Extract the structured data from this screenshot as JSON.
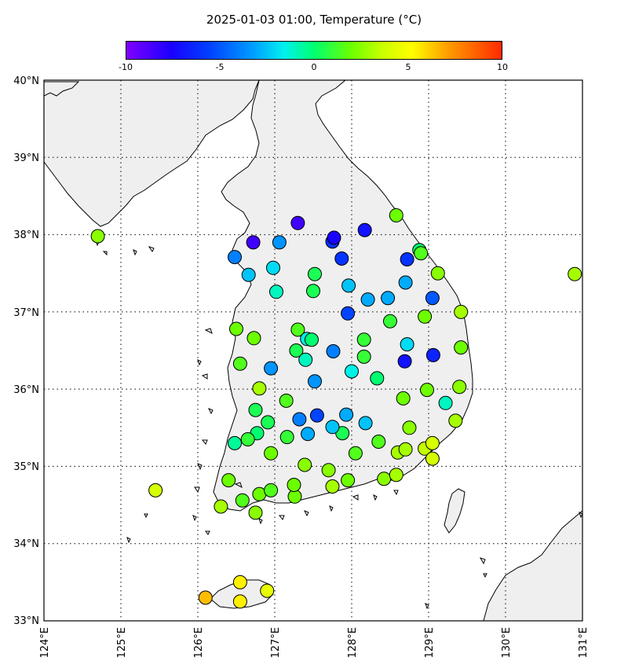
{
  "title": "2025-01-03 01:00, Temperature (°C)",
  "colorbar": {
    "ticks": [
      "-10",
      "-5",
      "0",
      "5",
      "10"
    ],
    "range": [
      -10,
      10
    ]
  },
  "axes": {
    "lat_labels": [
      "40°N",
      "39°N",
      "38°N",
      "37°N",
      "36°N",
      "35°N",
      "34°N",
      "33°N"
    ],
    "lon_labels": [
      "124°E",
      "125°E",
      "126°E",
      "127°E",
      "128°E",
      "129°E",
      "130°E",
      "131°E"
    ],
    "lat_range": [
      33,
      40
    ],
    "lon_range": [
      124,
      131
    ],
    "grid": "dotted"
  },
  "chart_data": {
    "type": "scatter",
    "title": "2025-01-03 01:00, Temperature (°C)",
    "colorbar_label": "Temperature (°C)",
    "xlabel": "",
    "ylabel": "",
    "xlim": [
      124,
      131
    ],
    "ylim": [
      33,
      40
    ],
    "points": [
      {
        "lon": 124.7,
        "lat": 37.98,
        "t": 2.5
      },
      {
        "lon": 125.45,
        "lat": 34.69,
        "t": 4
      },
      {
        "lon": 126.1,
        "lat": 33.3,
        "t": 6.5
      },
      {
        "lon": 126.55,
        "lat": 33.5,
        "t": 5.5
      },
      {
        "lon": 126.55,
        "lat": 33.25,
        "t": 5.5
      },
      {
        "lon": 126.9,
        "lat": 33.39,
        "t": 4.5
      },
      {
        "lon": 126.3,
        "lat": 34.48,
        "t": 3
      },
      {
        "lon": 126.4,
        "lat": 34.82,
        "t": 2
      },
      {
        "lon": 126.58,
        "lat": 34.56,
        "t": 1.5
      },
      {
        "lon": 126.75,
        "lat": 34.4,
        "t": 2.5
      },
      {
        "lon": 126.8,
        "lat": 34.64,
        "t": 2
      },
      {
        "lon": 126.95,
        "lat": 34.69,
        "t": 1.5
      },
      {
        "lon": 127.26,
        "lat": 34.61,
        "t": 2
      },
      {
        "lon": 127.25,
        "lat": 34.76,
        "t": 2
      },
      {
        "lon": 127.39,
        "lat": 35.02,
        "t": 2.5
      },
      {
        "lon": 127.7,
        "lat": 34.95,
        "t": 2.5
      },
      {
        "lon": 127.75,
        "lat": 34.74,
        "t": 3
      },
      {
        "lon": 127.95,
        "lat": 34.82,
        "t": 2
      },
      {
        "lon": 128.05,
        "lat": 35.17,
        "t": 1.5
      },
      {
        "lon": 128.42,
        "lat": 34.84,
        "t": 2.5
      },
      {
        "lon": 128.58,
        "lat": 34.89,
        "t": 3
      },
      {
        "lon": 128.6,
        "lat": 35.18,
        "t": 3
      },
      {
        "lon": 128.7,
        "lat": 35.22,
        "t": 3
      },
      {
        "lon": 128.95,
        "lat": 35.23,
        "t": 3.5
      },
      {
        "lon": 129.05,
        "lat": 35.1,
        "t": 4
      },
      {
        "lon": 129.05,
        "lat": 35.3,
        "t": 4
      },
      {
        "lon": 128.75,
        "lat": 35.5,
        "t": 2.5
      },
      {
        "lon": 129.35,
        "lat": 35.59,
        "t": 3
      },
      {
        "lon": 129.22,
        "lat": 35.82,
        "t": -1
      },
      {
        "lon": 129.4,
        "lat": 36.03,
        "t": 2.5
      },
      {
        "lon": 128.98,
        "lat": 35.99,
        "t": 2
      },
      {
        "lon": 128.67,
        "lat": 35.88,
        "t": 2
      },
      {
        "lon": 128.35,
        "lat": 35.32,
        "t": 1.5
      },
      {
        "lon": 128.18,
        "lat": 35.56,
        "t": -2.5
      },
      {
        "lon": 127.93,
        "lat": 35.67,
        "t": -3
      },
      {
        "lon": 127.88,
        "lat": 35.43,
        "t": 0.5
      },
      {
        "lon": 127.75,
        "lat": 35.51,
        "t": -2.5
      },
      {
        "lon": 127.55,
        "lat": 35.66,
        "t": -5.5
      },
      {
        "lon": 127.32,
        "lat": 35.61,
        "t": -4
      },
      {
        "lon": 127.43,
        "lat": 35.42,
        "t": -3
      },
      {
        "lon": 127.16,
        "lat": 35.38,
        "t": 1
      },
      {
        "lon": 126.95,
        "lat": 35.17,
        "t": 2
      },
      {
        "lon": 126.91,
        "lat": 35.57,
        "t": 0.5
      },
      {
        "lon": 126.77,
        "lat": 35.43,
        "t": 0
      },
      {
        "lon": 126.65,
        "lat": 35.35,
        "t": 1
      },
      {
        "lon": 126.48,
        "lat": 35.3,
        "t": -0.5
      },
      {
        "lon": 126.75,
        "lat": 35.73,
        "t": 0.5
      },
      {
        "lon": 127.15,
        "lat": 35.85,
        "t": 1.5
      },
      {
        "lon": 126.8,
        "lat": 36.01,
        "t": 3
      },
      {
        "lon": 126.55,
        "lat": 36.33,
        "t": 1.5
      },
      {
        "lon": 126.95,
        "lat": 36.27,
        "t": -3.5
      },
      {
        "lon": 126.73,
        "lat": 36.66,
        "t": 2
      },
      {
        "lon": 126.5,
        "lat": 36.78,
        "t": 2
      },
      {
        "lon": 127.28,
        "lat": 36.5,
        "t": 0.5
      },
      {
        "lon": 127.4,
        "lat": 36.38,
        "t": -1
      },
      {
        "lon": 127.3,
        "lat": 36.77,
        "t": 1.5
      },
      {
        "lon": 127.42,
        "lat": 36.65,
        "t": -1.5
      },
      {
        "lon": 127.48,
        "lat": 36.64,
        "t": 0
      },
      {
        "lon": 127.52,
        "lat": 36.1,
        "t": -3.5
      },
      {
        "lon": 127.76,
        "lat": 36.49,
        "t": -4
      },
      {
        "lon": 128.0,
        "lat": 36.23,
        "t": -1.5
      },
      {
        "lon": 128.16,
        "lat": 36.42,
        "t": 1
      },
      {
        "lon": 128.33,
        "lat": 36.14,
        "t": 0
      },
      {
        "lon": 128.16,
        "lat": 36.64,
        "t": 1
      },
      {
        "lon": 127.95,
        "lat": 36.98,
        "t": -5.5
      },
      {
        "lon": 128.5,
        "lat": 36.88,
        "t": 1
      },
      {
        "lon": 128.72,
        "lat": 36.58,
        "t": -2
      },
      {
        "lon": 128.69,
        "lat": 36.36,
        "t": -7
      },
      {
        "lon": 129.06,
        "lat": 36.44,
        "t": -6.5
      },
      {
        "lon": 128.95,
        "lat": 36.94,
        "t": 2
      },
      {
        "lon": 129.42,
        "lat": 37.0,
        "t": 3
      },
      {
        "lon": 129.42,
        "lat": 36.54,
        "t": 2
      },
      {
        "lon": 129.05,
        "lat": 37.18,
        "t": -5
      },
      {
        "lon": 128.7,
        "lat": 37.38,
        "t": -3
      },
      {
        "lon": 128.47,
        "lat": 37.18,
        "t": -3
      },
      {
        "lon": 128.21,
        "lat": 37.16,
        "t": -3
      },
      {
        "lon": 127.96,
        "lat": 37.34,
        "t": -2.5
      },
      {
        "lon": 127.5,
        "lat": 37.27,
        "t": 0.5
      },
      {
        "lon": 127.52,
        "lat": 37.49,
        "t": 0.5
      },
      {
        "lon": 127.02,
        "lat": 37.26,
        "t": -1
      },
      {
        "lon": 126.98,
        "lat": 37.57,
        "t": -2
      },
      {
        "lon": 126.66,
        "lat": 37.48,
        "t": -2.5
      },
      {
        "lon": 126.48,
        "lat": 37.71,
        "t": -4
      },
      {
        "lon": 126.72,
        "lat": 37.9,
        "t": -8.5
      },
      {
        "lon": 127.06,
        "lat": 37.9,
        "t": -3.5
      },
      {
        "lon": 127.3,
        "lat": 38.15,
        "t": -8.5
      },
      {
        "lon": 127.75,
        "lat": 37.91,
        "t": -6
      },
      {
        "lon": 127.77,
        "lat": 37.96,
        "t": -7.5
      },
      {
        "lon": 127.87,
        "lat": 37.69,
        "t": -6
      },
      {
        "lon": 128.17,
        "lat": 38.06,
        "t": -7
      },
      {
        "lon": 128.58,
        "lat": 38.25,
        "t": 2
      },
      {
        "lon": 128.72,
        "lat": 37.68,
        "t": -6
      },
      {
        "lon": 128.88,
        "lat": 37.8,
        "t": 0
      },
      {
        "lon": 128.9,
        "lat": 37.76,
        "t": 1.5
      },
      {
        "lon": 129.12,
        "lat": 37.5,
        "t": 2.5
      },
      {
        "lon": 130.9,
        "lat": 37.49,
        "t": 3
      }
    ]
  }
}
